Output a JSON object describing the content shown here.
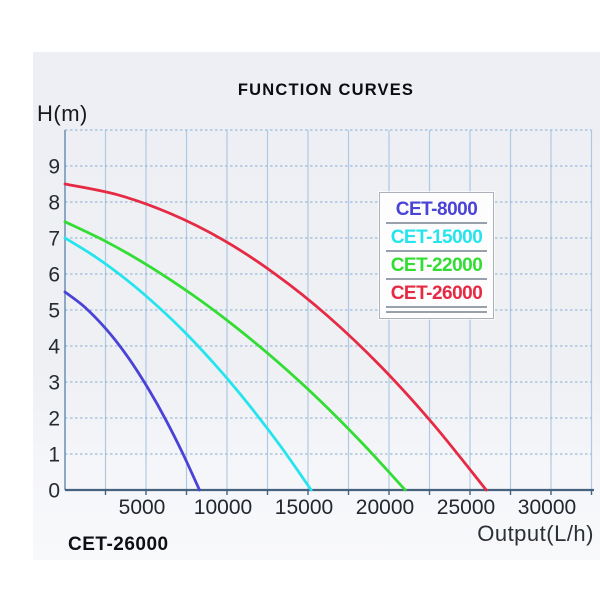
{
  "header": {
    "title": "FUNCTION CURVES"
  },
  "footer": {
    "model_label": "CET-26000"
  },
  "colors": {
    "panel_bg": "#eef0f4",
    "grid_vertical": "#9fc0e0",
    "grid_horizontal": "#8fb4d6",
    "axis_x": "#46627e",
    "axis_y": "#7396b5",
    "tick_text": "#22262e"
  },
  "chart_data": {
    "type": "line",
    "title": "FUNCTION CURVES",
    "xlabel": "Output(L/h)",
    "ylabel": "H(m)",
    "xlim": [
      0,
      32500
    ],
    "ylim": [
      0,
      10
    ],
    "x_ticks": [
      5000,
      10000,
      15000,
      20000,
      25000,
      30000
    ],
    "y_ticks": [
      0,
      1,
      2,
      3,
      4,
      5,
      6,
      7,
      8,
      9
    ],
    "grid": {
      "x_step": 2500,
      "y_step": 1,
      "visible": true
    },
    "legend_position": "upper-right",
    "series": [
      {
        "name": "CET-8000",
        "color": "#4b42d6",
        "max_head_m": 5.5,
        "max_flow_lh": 8300,
        "points": [
          [
            0,
            5.5
          ],
          [
            1038,
            5.15
          ],
          [
            2075,
            4.7
          ],
          [
            3113,
            4.16
          ],
          [
            4150,
            3.52
          ],
          [
            5188,
            2.78
          ],
          [
            6225,
            1.95
          ],
          [
            7263,
            1.02
          ],
          [
            8300,
            0
          ]
        ]
      },
      {
        "name": "CET-15000",
        "color": "#26e4ee",
        "max_head_m": 7.0,
        "max_flow_lh": 15200,
        "points": [
          [
            0,
            7.0
          ],
          [
            1900,
            6.47
          ],
          [
            3800,
            5.84
          ],
          [
            5700,
            5.11
          ],
          [
            7600,
            4.29
          ],
          [
            9500,
            3.36
          ],
          [
            11400,
            2.34
          ],
          [
            13300,
            1.22
          ],
          [
            15200,
            0
          ]
        ]
      },
      {
        "name": "CET-22000",
        "color": "#33dd33",
        "max_head_m": 7.45,
        "max_flow_lh": 21000,
        "points": [
          [
            0,
            7.45
          ],
          [
            2625,
            6.88
          ],
          [
            5250,
            6.2
          ],
          [
            7875,
            5.42
          ],
          [
            10500,
            4.54
          ],
          [
            13125,
            3.56
          ],
          [
            15750,
            2.48
          ],
          [
            18375,
            1.29
          ],
          [
            21000,
            0
          ]
        ]
      },
      {
        "name": "CET-26000",
        "color": "#e62a44",
        "max_head_m": 8.5,
        "max_flow_lh": 26000,
        "points": [
          [
            0,
            8.5
          ],
          [
            3250,
            8.2
          ],
          [
            6500,
            7.68
          ],
          [
            9750,
            6.95
          ],
          [
            13000,
            5.99
          ],
          [
            16250,
            4.82
          ],
          [
            19500,
            3.43
          ],
          [
            22750,
            1.82
          ],
          [
            26000,
            0
          ]
        ]
      }
    ]
  }
}
